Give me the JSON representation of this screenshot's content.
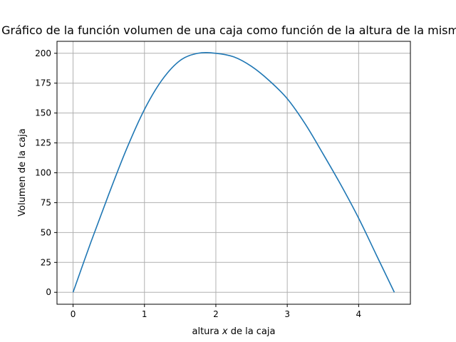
{
  "chart_data": {
    "type": "line",
    "title": "Gráfico de la función volumen de una caja como función de la altura de la misma",
    "xlabel_prefix": "altura ",
    "xlabel_var": "x",
    "xlabel_suffix": " de la caja",
    "ylabel": "Volumen de la caja",
    "xlim": [
      -0.225,
      4.725
    ],
    "ylim": [
      -10,
      210
    ],
    "xticks": [
      0,
      1,
      2,
      3,
      4
    ],
    "xtick_labels": [
      "0",
      "1",
      "2",
      "3",
      "4"
    ],
    "yticks": [
      0,
      25,
      50,
      75,
      100,
      125,
      150,
      175,
      200
    ],
    "ytick_labels": [
      "0",
      "25",
      "50",
      "75",
      "100",
      "125",
      "150",
      "175",
      "200"
    ],
    "grid": true,
    "series": [
      {
        "color": "#1f77b4",
        "x": [
          0,
          0.25,
          0.5,
          0.75,
          1.0,
          1.25,
          1.5,
          1.75,
          2.0,
          2.25,
          2.5,
          2.75,
          3.0,
          3.25,
          3.5,
          3.75,
          4.0,
          4.25,
          4.5
        ],
        "y": [
          0,
          42,
          82,
          120,
          153,
          178,
          194,
          200,
          200,
          197,
          189,
          177,
          162,
          141,
          116,
          90,
          62,
          31,
          0
        ]
      }
    ]
  }
}
